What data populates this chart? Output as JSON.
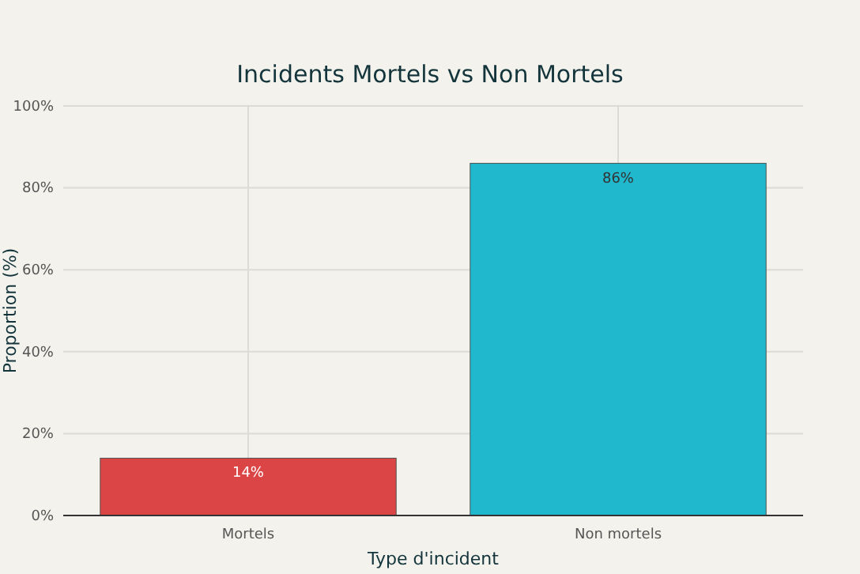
{
  "chart_data": {
    "type": "bar",
    "title": "Incidents Mortels vs Non Mortels",
    "xlabel": "Type d'incident",
    "ylabel": "Proportion (%)",
    "categories": [
      "Mortels",
      "Non mortels"
    ],
    "values": [
      14,
      86
    ],
    "colors": [
      "#db4545",
      "#1fb8cd"
    ],
    "value_labels": [
      "14%",
      "86%"
    ],
    "ylim": [
      0,
      100
    ],
    "yticks": [
      {
        "value": 0,
        "label": "0%"
      },
      {
        "value": 20,
        "label": "20%"
      },
      {
        "value": 40,
        "label": "40%"
      },
      {
        "value": 60,
        "label": "60%"
      },
      {
        "value": 80,
        "label": "80%"
      },
      {
        "value": 100,
        "label": "100%"
      }
    ],
    "grid": true
  }
}
